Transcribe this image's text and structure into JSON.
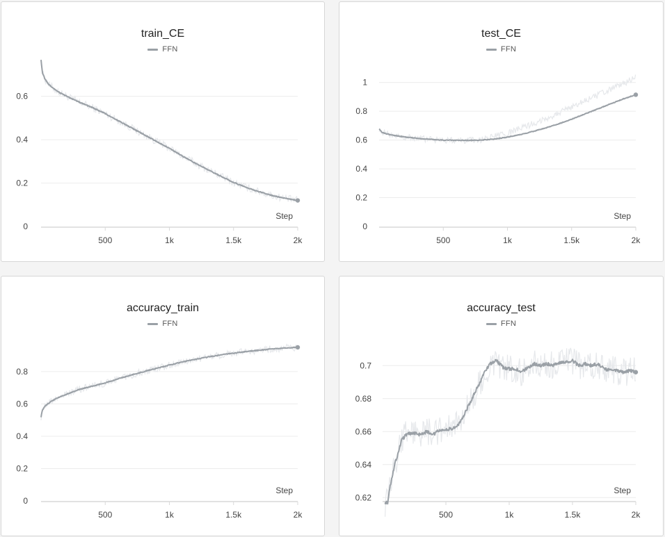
{
  "colors": {
    "line": "#9aa0a6",
    "raw": "#e6e8eb",
    "grid": "#ececec",
    "axis": "#d9d9d9"
  },
  "chart_data": [
    {
      "type": "line",
      "title": "train_CE",
      "legend": "FFN",
      "xlabel": "Step",
      "ylabel": "",
      "xlim": [
        0,
        2000
      ],
      "ylim": [
        0,
        0.73
      ],
      "xticks": [
        500,
        1000,
        1500,
        2000
      ],
      "xtick_labels": [
        "500",
        "1k",
        "1.5k",
        "2k"
      ],
      "yticks": [
        0,
        0.2,
        0.4,
        0.6
      ],
      "ytick_labels": [
        "0",
        "0.2",
        "0.4",
        "0.6"
      ],
      "grid": true,
      "legend_position": "top-center",
      "noise": 0.008,
      "series": [
        {
          "name": "FFN",
          "x": [
            0,
            10,
            30,
            60,
            100,
            150,
            200,
            300,
            400,
            500,
            600,
            700,
            800,
            900,
            1000,
            1100,
            1200,
            1300,
            1400,
            1500,
            1600,
            1700,
            1800,
            1900,
            2000
          ],
          "y": [
            0.77,
            0.71,
            0.68,
            0.655,
            0.635,
            0.615,
            0.6,
            0.572,
            0.548,
            0.52,
            0.488,
            0.456,
            0.424,
            0.392,
            0.36,
            0.325,
            0.292,
            0.262,
            0.232,
            0.203,
            0.18,
            0.16,
            0.143,
            0.13,
            0.12
          ]
        }
      ]
    },
    {
      "type": "line",
      "title": "test_CE",
      "legend": "FFN",
      "xlabel": "Step",
      "ylabel": "",
      "xlim": [
        0,
        2000
      ],
      "ylim": [
        0,
        1.1
      ],
      "xticks": [
        500,
        1000,
        1500,
        2000
      ],
      "xtick_labels": [
        "500",
        "1k",
        "1.5k",
        "2k"
      ],
      "yticks": [
        0,
        0.2,
        0.4,
        0.6,
        0.8,
        1
      ],
      "ytick_labels": [
        "0",
        "0.2",
        "0.4",
        "0.6",
        "0.8",
        "1"
      ],
      "grid": true,
      "legend_position": "top-center",
      "noise": 0.01,
      "series": [
        {
          "name": "FFN",
          "x": [
            0,
            20,
            50,
            100,
            200,
            300,
            400,
            500,
            600,
            700,
            800,
            900,
            1000,
            1100,
            1200,
            1300,
            1400,
            1500,
            1600,
            1700,
            1800,
            1900,
            2000
          ],
          "y": [
            0.68,
            0.655,
            0.645,
            0.635,
            0.622,
            0.612,
            0.605,
            0.6,
            0.598,
            0.598,
            0.6,
            0.607,
            0.62,
            0.638,
            0.66,
            0.685,
            0.713,
            0.745,
            0.78,
            0.815,
            0.85,
            0.885,
            0.915
          ]
        },
        {
          "name": "",
          "role": "raw",
          "x": [
            800,
            900,
            1000,
            1100,
            1200,
            1300,
            1400,
            1500,
            1600,
            1700,
            1800,
            1900,
            2000
          ],
          "y": [
            0.61,
            0.625,
            0.645,
            0.68,
            0.715,
            0.75,
            0.79,
            0.83,
            0.87,
            0.91,
            0.95,
            0.99,
            1.04
          ]
        }
      ]
    },
    {
      "type": "line",
      "title": "accuracy_train",
      "legend": "FFN",
      "xlabel": "Step",
      "ylabel": "",
      "xlim": [
        0,
        2000
      ],
      "ylim": [
        0,
        0.98
      ],
      "xticks": [
        500,
        1000,
        1500,
        2000
      ],
      "xtick_labels": [
        "500",
        "1k",
        "1.5k",
        "2k"
      ],
      "yticks": [
        0,
        0.2,
        0.4,
        0.6,
        0.8
      ],
      "ytick_labels": [
        "0",
        "0.2",
        "0.4",
        "0.6",
        "0.8"
      ],
      "grid": true,
      "legend_position": "top-center",
      "noise": 0.01,
      "series": [
        {
          "name": "FFN",
          "x": [
            0,
            10,
            30,
            60,
            100,
            150,
            200,
            300,
            400,
            500,
            600,
            700,
            800,
            900,
            1000,
            1100,
            1200,
            1300,
            1400,
            1500,
            1600,
            1700,
            1800,
            1900,
            2000
          ],
          "y": [
            0.52,
            0.56,
            0.585,
            0.605,
            0.625,
            0.645,
            0.66,
            0.69,
            0.71,
            0.73,
            0.755,
            0.778,
            0.8,
            0.82,
            0.84,
            0.86,
            0.875,
            0.89,
            0.903,
            0.914,
            0.924,
            0.932,
            0.94,
            0.946,
            0.95
          ]
        }
      ]
    },
    {
      "type": "line",
      "title": "accuracy_test",
      "legend": "FFN",
      "xlabel": "Step",
      "ylabel": "",
      "xlim": [
        0,
        2000
      ],
      "ylim": [
        0.618,
        0.714
      ],
      "xticks": [
        500,
        1000,
        1500,
        2000
      ],
      "xtick_labels": [
        "500",
        "1k",
        "1.5k",
        "2k"
      ],
      "yticks": [
        0.62,
        0.64,
        0.66,
        0.68,
        0.7
      ],
      "ytick_labels": [
        "0.62",
        "0.64",
        "0.66",
        "0.68",
        "0.7"
      ],
      "grid": true,
      "legend_position": "top-center",
      "noise": 0.004,
      "series": [
        {
          "name": "FFN",
          "x": [
            20,
            40,
            60,
            100,
            150,
            200,
            250,
            300,
            350,
            400,
            450,
            500,
            550,
            600,
            650,
            700,
            750,
            800,
            850,
            900,
            950,
            1000,
            1050,
            1100,
            1150,
            1200,
            1250,
            1300,
            1350,
            1400,
            1450,
            1500,
            1550,
            1600,
            1650,
            1700,
            1750,
            1800,
            1850,
            1900,
            1950,
            2000
          ],
          "y": [
            0.617,
            0.617,
            0.627,
            0.641,
            0.655,
            0.659,
            0.659,
            0.658,
            0.66,
            0.658,
            0.661,
            0.661,
            0.662,
            0.664,
            0.671,
            0.679,
            0.687,
            0.695,
            0.701,
            0.703,
            0.699,
            0.698,
            0.698,
            0.696,
            0.699,
            0.701,
            0.7,
            0.701,
            0.7,
            0.702,
            0.702,
            0.703,
            0.7,
            0.701,
            0.7,
            0.701,
            0.698,
            0.697,
            0.697,
            0.696,
            0.697,
            0.696
          ]
        }
      ]
    }
  ]
}
